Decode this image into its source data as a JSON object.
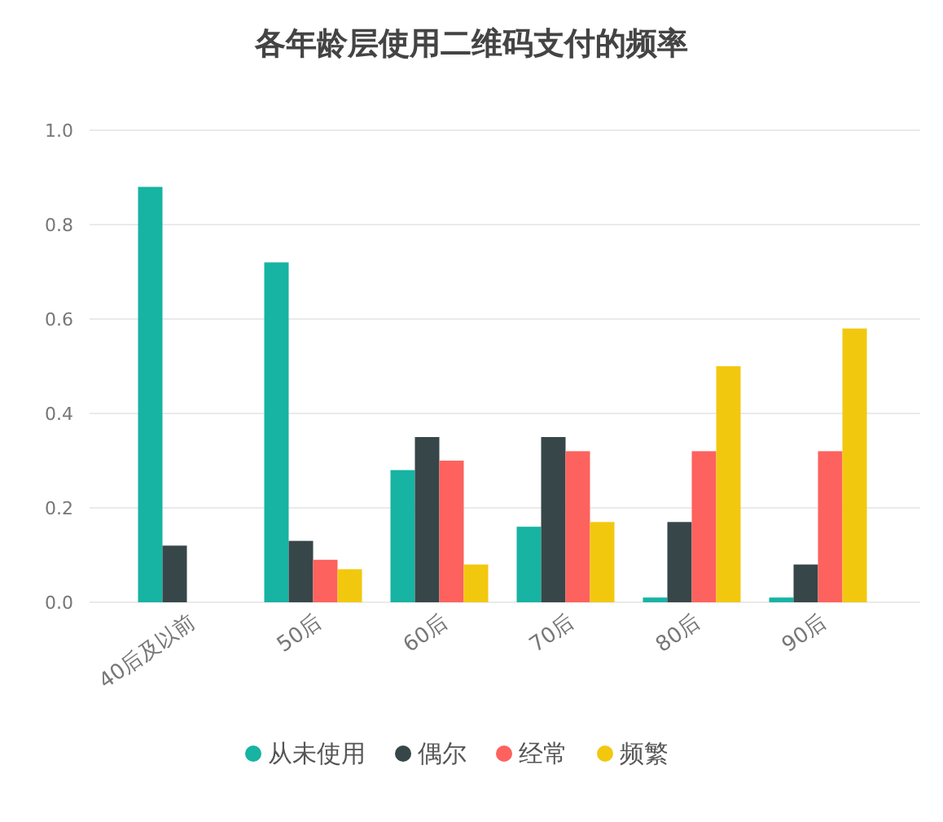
{
  "chart_data": {
    "type": "bar",
    "title": "各年龄层使用二维码支付的频率",
    "categories": [
      "40后及以前",
      "50后",
      "60后",
      "70后",
      "80后",
      "90后"
    ],
    "series": [
      {
        "name": "从未使用",
        "color": "#17b3a3",
        "values": [
          0.88,
          0.72,
          0.28,
          0.16,
          0.01,
          0.01
        ]
      },
      {
        "name": "偶尔",
        "color": "#374649",
        "values": [
          0.12,
          0.13,
          0.35,
          0.35,
          0.17,
          0.08
        ]
      },
      {
        "name": "经常",
        "color": "#fd625e",
        "values": [
          null,
          0.09,
          0.3,
          0.32,
          0.32,
          0.32
        ]
      },
      {
        "name": "频繁",
        "color": "#f2c80f",
        "values": [
          null,
          0.07,
          0.08,
          0.17,
          0.5,
          0.58
        ]
      }
    ],
    "ylim": [
      0,
      1
    ],
    "yticks": [
      {
        "value": 0,
        "label": "0.0"
      },
      0.2,
      0.4,
      0.6,
      0.8,
      {
        "value": 1,
        "label": "1.0"
      }
    ],
    "grid": "y",
    "legend": "bottom",
    "marker": "circle"
  }
}
